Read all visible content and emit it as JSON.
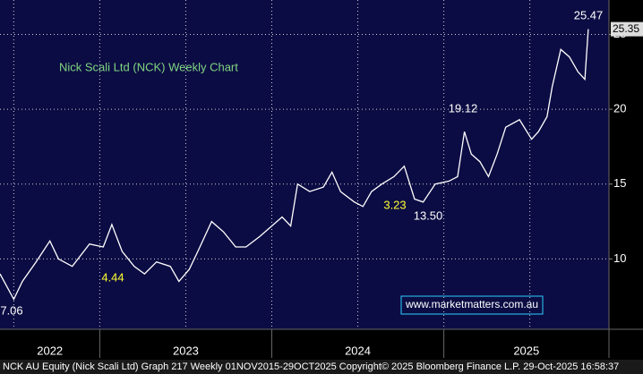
{
  "chart_data": {
    "type": "line",
    "title": "Nick Scali Ltd (NCK) Weekly Chart",
    "footer": "NCK AU Equity (Nick Scali Ltd) Graph 217 Weekly 01NOV2015-29OCT2025  Copyright© 2025 Bloomberg Finance L.P.  29-Oct-2025 16:58:37",
    "watermark": "www.marketmatters.com.au",
    "annotations": [
      {
        "text": "25.47",
        "color": "#ffffff"
      },
      {
        "text": "19.12",
        "color": "#ffffff"
      },
      {
        "text": "13.50",
        "color": "#ffffff"
      },
      {
        "text": "3.23",
        "color": "#ffff33"
      },
      {
        "text": "4.44",
        "color": "#ffff33"
      },
      {
        "text": "7.06",
        "color": "#ffffff"
      }
    ],
    "series": [
      {
        "name": "NCK",
        "color": "#ffffff",
        "x": [
          2022.42,
          2022.5,
          2022.55,
          2022.63,
          2022.71,
          2022.76,
          2022.84,
          2022.94,
          2023.02,
          2023.07,
          2023.13,
          2023.2,
          2023.26,
          2023.33,
          2023.41,
          2023.46,
          2023.52,
          2023.57,
          2023.65,
          2023.72,
          2023.79,
          2023.85,
          2023.93,
          2023.98,
          2024.06,
          2024.11,
          2024.15,
          2024.22,
          2024.3,
          2024.35,
          2024.4,
          2024.48,
          2024.53,
          2024.58,
          2024.64,
          2024.71,
          2024.77,
          2024.83,
          2024.88,
          2024.95,
          2025.03,
          2025.08,
          2025.12,
          2025.16,
          2025.21,
          2025.26,
          2025.31,
          2025.36,
          2025.44,
          2025.51,
          2025.55,
          2025.6,
          2025.63,
          2025.68,
          2025.73,
          2025.78,
          2025.82,
          2025.84
        ],
        "values": [
          9.0,
          7.3,
          8.5,
          9.8,
          11.2,
          10.0,
          9.5,
          11.0,
          10.8,
          12.3,
          10.5,
          9.5,
          9.0,
          9.8,
          9.5,
          8.5,
          9.3,
          10.5,
          12.5,
          11.8,
          10.8,
          10.8,
          11.5,
          12.0,
          12.8,
          12.2,
          15.0,
          14.5,
          14.8,
          15.8,
          14.5,
          13.8,
          13.5,
          14.5,
          15.0,
          15.5,
          16.2,
          14.0,
          13.8,
          15.0,
          15.2,
          15.5,
          18.5,
          17.0,
          16.5,
          15.5,
          17.0,
          18.8,
          19.3,
          18.0,
          18.5,
          19.5,
          21.5,
          24.0,
          23.5,
          22.5,
          22.0,
          25.35
        ]
      }
    ],
    "xlim": [
      2022.42,
      2025.96
    ],
    "xticks": [
      {
        "value": 2022,
        "label": "2022"
      },
      {
        "value": 2023,
        "label": "2023"
      },
      {
        "value": 2024,
        "label": "2024"
      },
      {
        "value": 2025,
        "label": "2025"
      }
    ],
    "ylim": [
      5.3,
      27.3
    ],
    "yticks": [
      10,
      15,
      20,
      25
    ],
    "grid": true,
    "background": "#0c0c44"
  }
}
